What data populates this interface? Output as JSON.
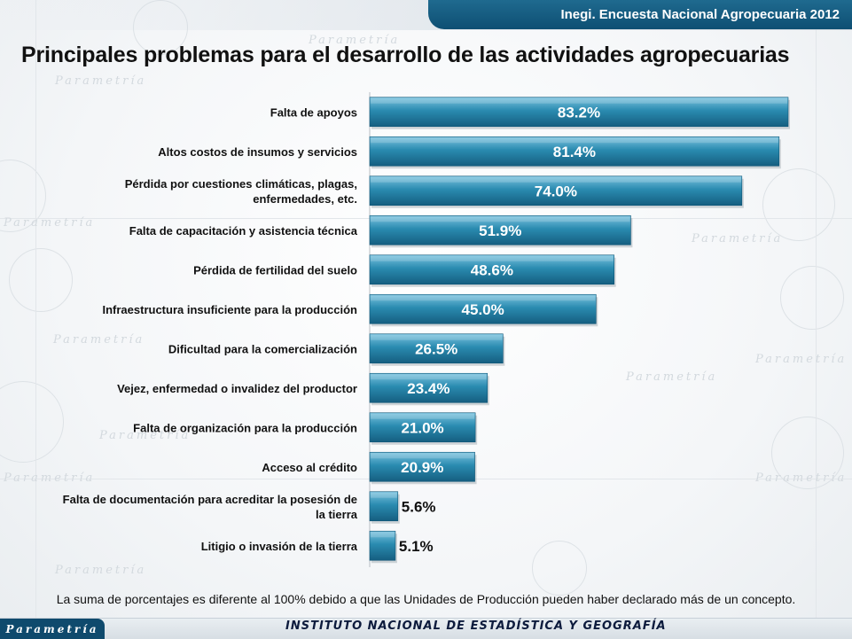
{
  "header": {
    "source": "Inegi. Encuesta Nacional Agropecuaria 2012"
  },
  "title": "Principales problemas para el desarrollo de las actividades agropecuarias",
  "footnote": "La suma de porcentajes es diferente al 100% debido a que las Unidades de Producción pueden haber declarado más de un concepto.",
  "footer": {
    "brand": "Parametría",
    "institute": "INSTITUTO NACIONAL  DE ESTADÍSTICA Y GEOGRAFÍA"
  },
  "watermark": {
    "text": "Parametría"
  },
  "colors": {
    "bar": "#1f7ea3",
    "bar_light": "#5fb4d3",
    "header": "#0e4f73"
  },
  "chart_data": {
    "type": "bar",
    "orientation": "horizontal",
    "categories": [
      "Falta de apoyos",
      "Altos costos de insumos y servicios",
      "Pérdida por cuestiones climáticas, plagas, enfermedades, etc.",
      "Falta de capacitación y asistencia técnica",
      "Pérdida de fertilidad del suelo",
      "Infraestructura insuficiente para la producción",
      "Dificultad para la comercialización",
      "Vejez, enfermedad o invalidez del productor",
      "Falta de organización para la producción",
      "Acceso al crédito",
      "Falta de documentación para acreditar la posesión de la tierra",
      "Litigio o invasión de la tierra"
    ],
    "category_lines": [
      [
        "Falta de apoyos"
      ],
      [
        "Altos costos de insumos y servicios"
      ],
      [
        "Pérdida por cuestiones climáticas, plagas,",
        "enfermedades, etc."
      ],
      [
        "Falta de capacitación y asistencia técnica"
      ],
      [
        "Pérdida de fertilidad del suelo"
      ],
      [
        "Infraestructura insuficiente para la producción"
      ],
      [
        "Dificultad para la comercialización"
      ],
      [
        "Vejez, enfermedad o invalidez del productor"
      ],
      [
        "Falta de organización para la producción"
      ],
      [
        "Acceso al crédito"
      ],
      [
        "Falta de documentación para acreditar la posesión de",
        "la tierra"
      ],
      [
        "Litigio o invasión de la tierra"
      ]
    ],
    "values": [
      83.2,
      81.4,
      74.0,
      51.9,
      48.6,
      45.0,
      26.5,
      23.4,
      21.0,
      20.9,
      5.6,
      5.1
    ],
    "value_labels": [
      "83.2%",
      "81.4%",
      "74.0%",
      "51.9%",
      "48.6%",
      "45.0%",
      "26.5%",
      "23.4%",
      "21.0%",
      "20.9%",
      "5.6%",
      "5.1%"
    ],
    "title": "Principales problemas para el desarrollo de las actividades agropecuarias",
    "xlabel": "",
    "ylabel": "",
    "xlim": [
      0,
      85
    ],
    "grid": false,
    "legend": "none"
  }
}
